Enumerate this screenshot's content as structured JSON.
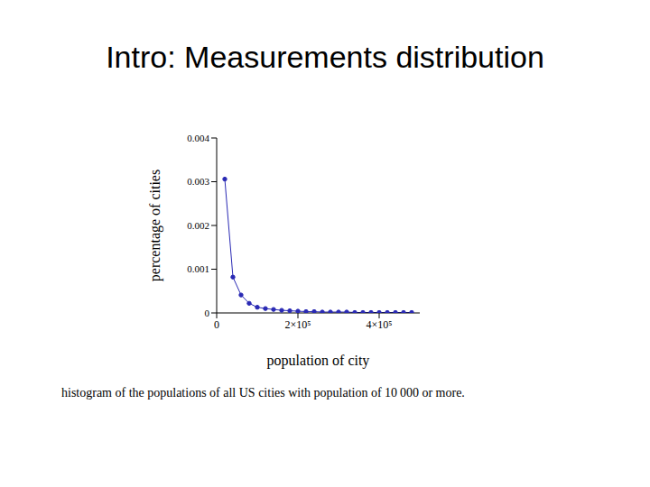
{
  "chart_data": {
    "type": "line",
    "title": "Intro: Measurements distribution",
    "x_label": "population of city",
    "y_label": "percentage of cities",
    "caption": "histogram of the populations of all US cities with population of 10 000 or more.",
    "x": [
      20000,
      40000,
      60000,
      80000,
      100000,
      120000,
      140000,
      160000,
      180000,
      200000,
      220000,
      240000,
      260000,
      280000,
      300000,
      320000,
      340000,
      360000,
      380000,
      400000,
      420000,
      440000,
      460000,
      480000
    ],
    "values": [
      0.00306,
      0.00082,
      0.00041,
      0.00022,
      0.00013,
      0.0001,
      8e-05,
      6e-05,
      5e-05,
      4e-05,
      3e-05,
      3e-05,
      2e-05,
      2e-05,
      2e-05,
      2e-05,
      1e-05,
      1e-05,
      1e-05,
      1e-05,
      1e-05,
      1e-05,
      1e-05,
      1e-05
    ],
    "color": "#2a2ab4",
    "marker": "circle",
    "grid": false,
    "xlim": [
      0,
      500000
    ],
    "xticks": [
      0,
      {
        "value": 200000,
        "label": "2×10⁵"
      },
      {
        "value": 400000,
        "label": "4×10⁵"
      }
    ],
    "ylim": [
      0,
      0.004
    ],
    "yticks": [
      0,
      0.001,
      0.002,
      0.003,
      0.004
    ]
  }
}
